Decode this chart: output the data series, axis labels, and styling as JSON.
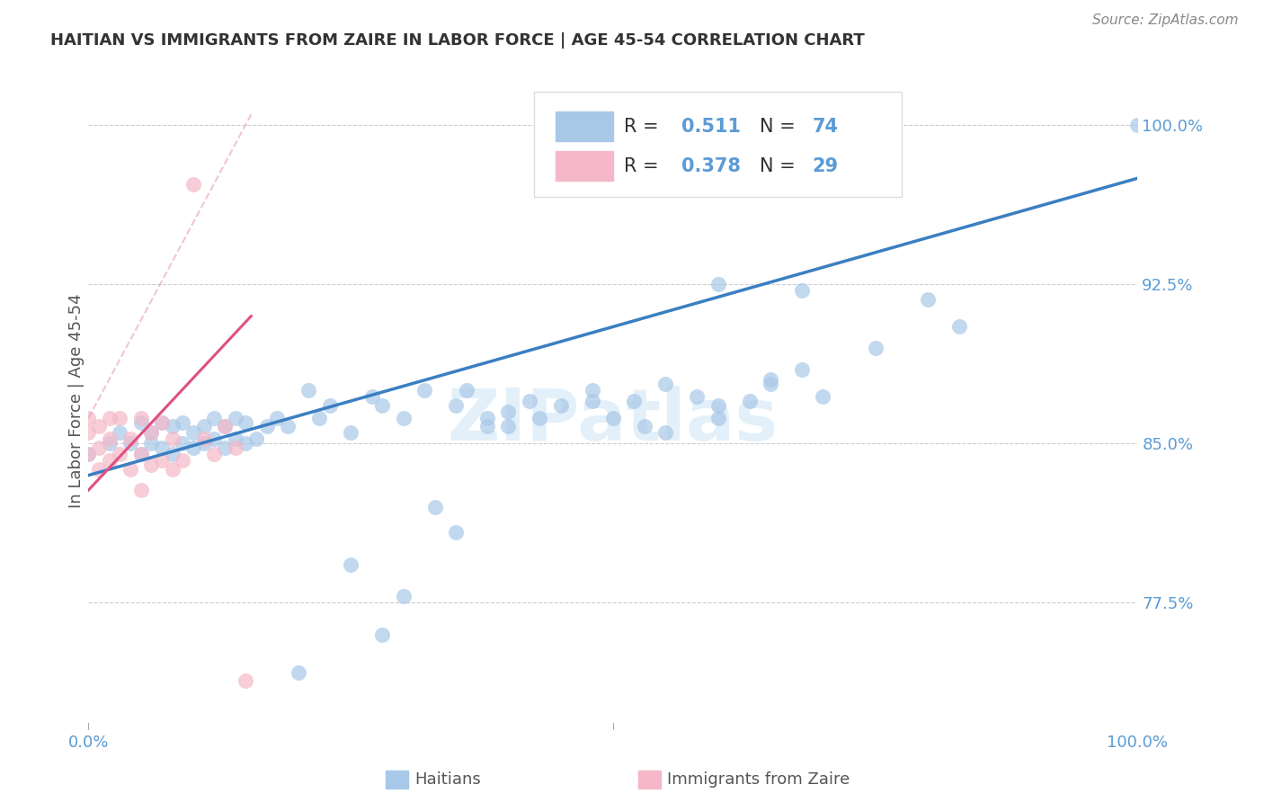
{
  "title": "HAITIAN VS IMMIGRANTS FROM ZAIRE IN LABOR FORCE | AGE 45-54 CORRELATION CHART",
  "source": "Source: ZipAtlas.com",
  "ylabel": "In Labor Force | Age 45-54",
  "x_min": 0.0,
  "x_max": 1.0,
  "y_min": 0.715,
  "y_max": 1.025,
  "y_ticks": [
    0.775,
    0.85,
    0.925,
    1.0
  ],
  "y_tick_labels": [
    "77.5%",
    "85.0%",
    "92.5%",
    "100.0%"
  ],
  "x_ticks": [
    0.0,
    1.0
  ],
  "x_tick_labels": [
    "0.0%",
    "100.0%"
  ],
  "blue_color": "#a8c8e8",
  "pink_color": "#f4b8c8",
  "line_blue": "#3a7fc1",
  "line_pink": "#e05080",
  "line_pink_dash": "#e8a0b0",
  "axis_label_color": "#5b9bd5",
  "title_color": "#333333",
  "blue_scatter_x": [
    0.0,
    0.02,
    0.03,
    0.04,
    0.05,
    0.05,
    0.06,
    0.06,
    0.07,
    0.07,
    0.08,
    0.08,
    0.09,
    0.09,
    0.1,
    0.1,
    0.11,
    0.11,
    0.12,
    0.12,
    0.13,
    0.13,
    0.14,
    0.14,
    0.15,
    0.15,
    0.16,
    0.17,
    0.18,
    0.19,
    0.21,
    0.22,
    0.23,
    0.25,
    0.27,
    0.28,
    0.3,
    0.32,
    0.35,
    0.36,
    0.38,
    0.4,
    0.42,
    0.45,
    0.48,
    0.5,
    0.52,
    0.55,
    0.58,
    0.6,
    0.65,
    0.68,
    0.7,
    0.75,
    0.8,
    0.83,
    0.35,
    0.4,
    0.63,
    0.65,
    0.55,
    0.6,
    0.25,
    0.3,
    0.28,
    0.33,
    0.38,
    0.43,
    0.48,
    0.53,
    0.2,
    0.68,
    1.0,
    0.6
  ],
  "blue_scatter_y": [
    0.845,
    0.85,
    0.855,
    0.85,
    0.845,
    0.86,
    0.85,
    0.855,
    0.848,
    0.86,
    0.845,
    0.858,
    0.85,
    0.86,
    0.848,
    0.855,
    0.85,
    0.858,
    0.852,
    0.862,
    0.848,
    0.858,
    0.852,
    0.862,
    0.85,
    0.86,
    0.852,
    0.858,
    0.862,
    0.858,
    0.875,
    0.862,
    0.868,
    0.855,
    0.872,
    0.868,
    0.862,
    0.875,
    0.868,
    0.875,
    0.862,
    0.865,
    0.87,
    0.868,
    0.875,
    0.862,
    0.87,
    0.878,
    0.872,
    0.868,
    0.88,
    0.885,
    0.872,
    0.895,
    0.918,
    0.905,
    0.808,
    0.858,
    0.87,
    0.878,
    0.855,
    0.862,
    0.793,
    0.778,
    0.76,
    0.82,
    0.858,
    0.862,
    0.87,
    0.858,
    0.742,
    0.922,
    1.0,
    0.925
  ],
  "pink_scatter_x": [
    0.0,
    0.0,
    0.0,
    0.01,
    0.01,
    0.01,
    0.02,
    0.02,
    0.02,
    0.03,
    0.03,
    0.04,
    0.04,
    0.05,
    0.05,
    0.05,
    0.06,
    0.06,
    0.07,
    0.07,
    0.08,
    0.08,
    0.09,
    0.1,
    0.11,
    0.12,
    0.13,
    0.14,
    0.15
  ],
  "pink_scatter_y": [
    0.845,
    0.855,
    0.862,
    0.838,
    0.848,
    0.858,
    0.842,
    0.852,
    0.862,
    0.845,
    0.862,
    0.838,
    0.852,
    0.828,
    0.845,
    0.862,
    0.84,
    0.855,
    0.842,
    0.86,
    0.838,
    0.852,
    0.842,
    0.972,
    0.852,
    0.845,
    0.858,
    0.848,
    0.738
  ],
  "blue_line_x": [
    0.0,
    1.0
  ],
  "blue_line_y": [
    0.835,
    0.975
  ],
  "pink_line_x": [
    0.0,
    0.155
  ],
  "pink_line_y": [
    0.828,
    0.91
  ]
}
